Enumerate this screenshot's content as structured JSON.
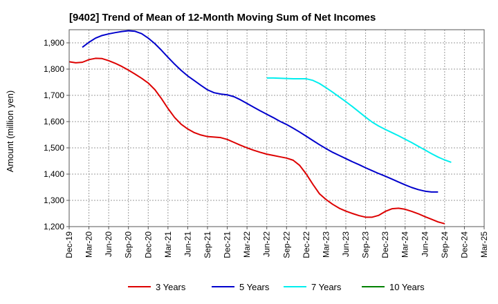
{
  "chart_data": {
    "type": "line",
    "title": "[9402]  Trend of Mean of 12-Month Moving Sum of Net Incomes",
    "xlabel": "",
    "ylabel": "Amount (million yen)",
    "ylim": [
      1200,
      1950
    ],
    "yticks": [
      1200,
      1300,
      1400,
      1500,
      1600,
      1700,
      1800,
      1900
    ],
    "ytick_labels": [
      "1,200",
      "1,300",
      "1,400",
      "1,500",
      "1,600",
      "1,700",
      "1,800",
      "1,900"
    ],
    "x_start": "Dec-19",
    "x_months_total": 63,
    "xtick_labels": [
      "Dec-19",
      "Mar-20",
      "Jun-20",
      "Sep-20",
      "Dec-20",
      "Mar-21",
      "Jun-21",
      "Sep-21",
      "Dec-21",
      "Mar-22",
      "Jun-22",
      "Sep-22",
      "Dec-22",
      "Mar-23",
      "Jun-23",
      "Sep-23",
      "Dec-23",
      "Mar-24",
      "Jun-24",
      "Sep-24",
      "Dec-24",
      "Mar-25"
    ],
    "grid": true,
    "legend_position": "bottom",
    "series": [
      {
        "name": "3 Years",
        "color": "#dd0000",
        "start_month_index": 0,
        "values": [
          1828,
          1824,
          1826,
          1836,
          1841,
          1840,
          1832,
          1822,
          1810,
          1796,
          1781,
          1765,
          1747,
          1722,
          1688,
          1650,
          1616,
          1590,
          1572,
          1558,
          1549,
          1543,
          1541,
          1539,
          1532,
          1521,
          1510,
          1500,
          1491,
          1483,
          1476,
          1471,
          1466,
          1461,
          1453,
          1433,
          1400,
          1361,
          1325,
          1303,
          1285,
          1270,
          1259,
          1250,
          1242,
          1236,
          1236,
          1243,
          1258,
          1268,
          1270,
          1266,
          1258,
          1249,
          1238,
          1228,
          1218,
          1211
        ]
      },
      {
        "name": "5 Years",
        "color": "#0000cc",
        "start_month_index": 2,
        "values": [
          1883,
          1902,
          1918,
          1928,
          1934,
          1939,
          1943,
          1946,
          1944,
          1935,
          1918,
          1897,
          1872,
          1845,
          1819,
          1795,
          1774,
          1756,
          1738,
          1721,
          1710,
          1705,
          1702,
          1695,
          1683,
          1669,
          1655,
          1641,
          1628,
          1615,
          1601,
          1589,
          1575,
          1560,
          1544,
          1528,
          1512,
          1497,
          1483,
          1471,
          1459,
          1447,
          1436,
          1424,
          1413,
          1402,
          1392,
          1381,
          1370,
          1359,
          1349,
          1341,
          1335,
          1332,
          1332
        ]
      },
      {
        "name": "7 Years",
        "color": "#00eeee",
        "start_month_index": 30,
        "values": [
          1766,
          1766,
          1765,
          1764,
          1763,
          1763,
          1763,
          1757,
          1745,
          1729,
          1712,
          1694,
          1676,
          1657,
          1637,
          1617,
          1598,
          1583,
          1570,
          1558,
          1546,
          1533,
          1520,
          1506,
          1492,
          1478,
          1465,
          1454,
          1445
        ]
      },
      {
        "name": "10 Years",
        "color": "#008000",
        "start_month_index": 0,
        "values": []
      }
    ]
  }
}
